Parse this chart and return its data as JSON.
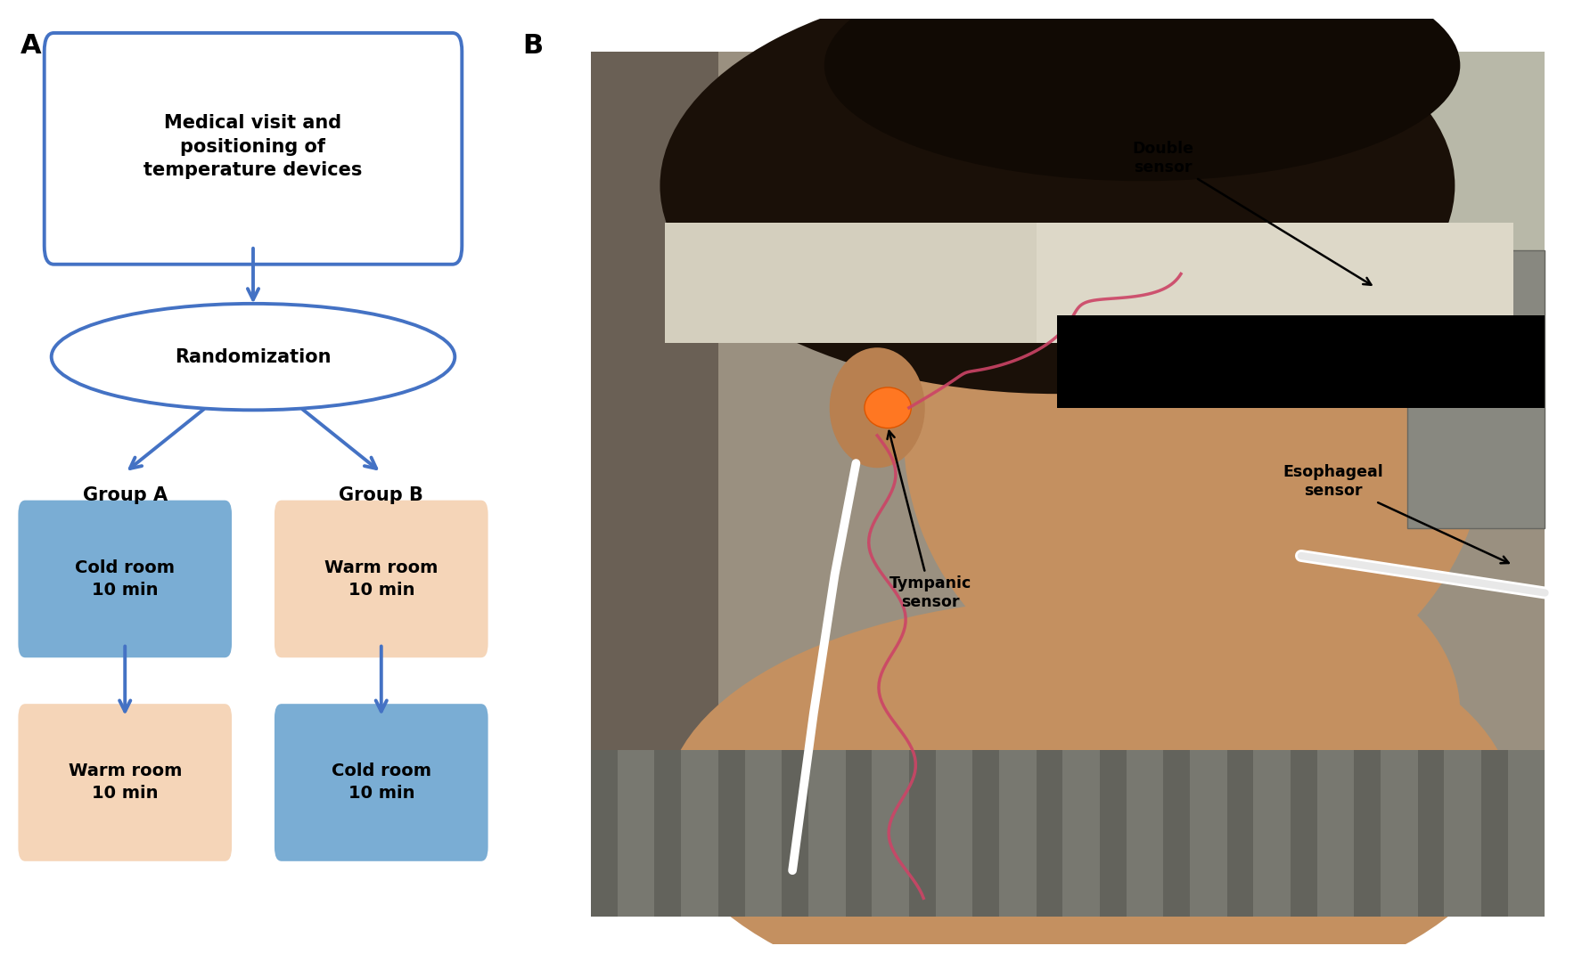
{
  "panel_a_label": "A",
  "panel_b_label": "B",
  "top_box_text": "Medical visit and\npositioning of\ntemperature devices",
  "randomization_text": "Randomization",
  "group_a_text": "Group A",
  "group_b_text": "Group B",
  "cold_room_text": "Cold room\n10 min",
  "warm_room_text": "Warm room\n10 min",
  "warm_room_text2": "Warm room\n10 min",
  "cold_room_text2": "Cold room\n10 min",
  "blue_box_color": "#7aadd4",
  "peach_box_color": "#f5d5b8",
  "arrow_color": "#4472c4",
  "box_border_color": "#4472c4",
  "double_sensor_label": "Double\nsensor",
  "tympanic_sensor_label": "Tympanic\nsensor",
  "esophageal_sensor_label": "Esophageal\nsensor",
  "bg_color": "#ffffff",
  "photo_bg": "#7a6e5e",
  "photo_bg2": "#6e7a6e",
  "skin_color": "#c49060",
  "hair_color": "#1a1008",
  "bandage_color": "#ddd8c8",
  "shirt_color": "#8a8a80"
}
